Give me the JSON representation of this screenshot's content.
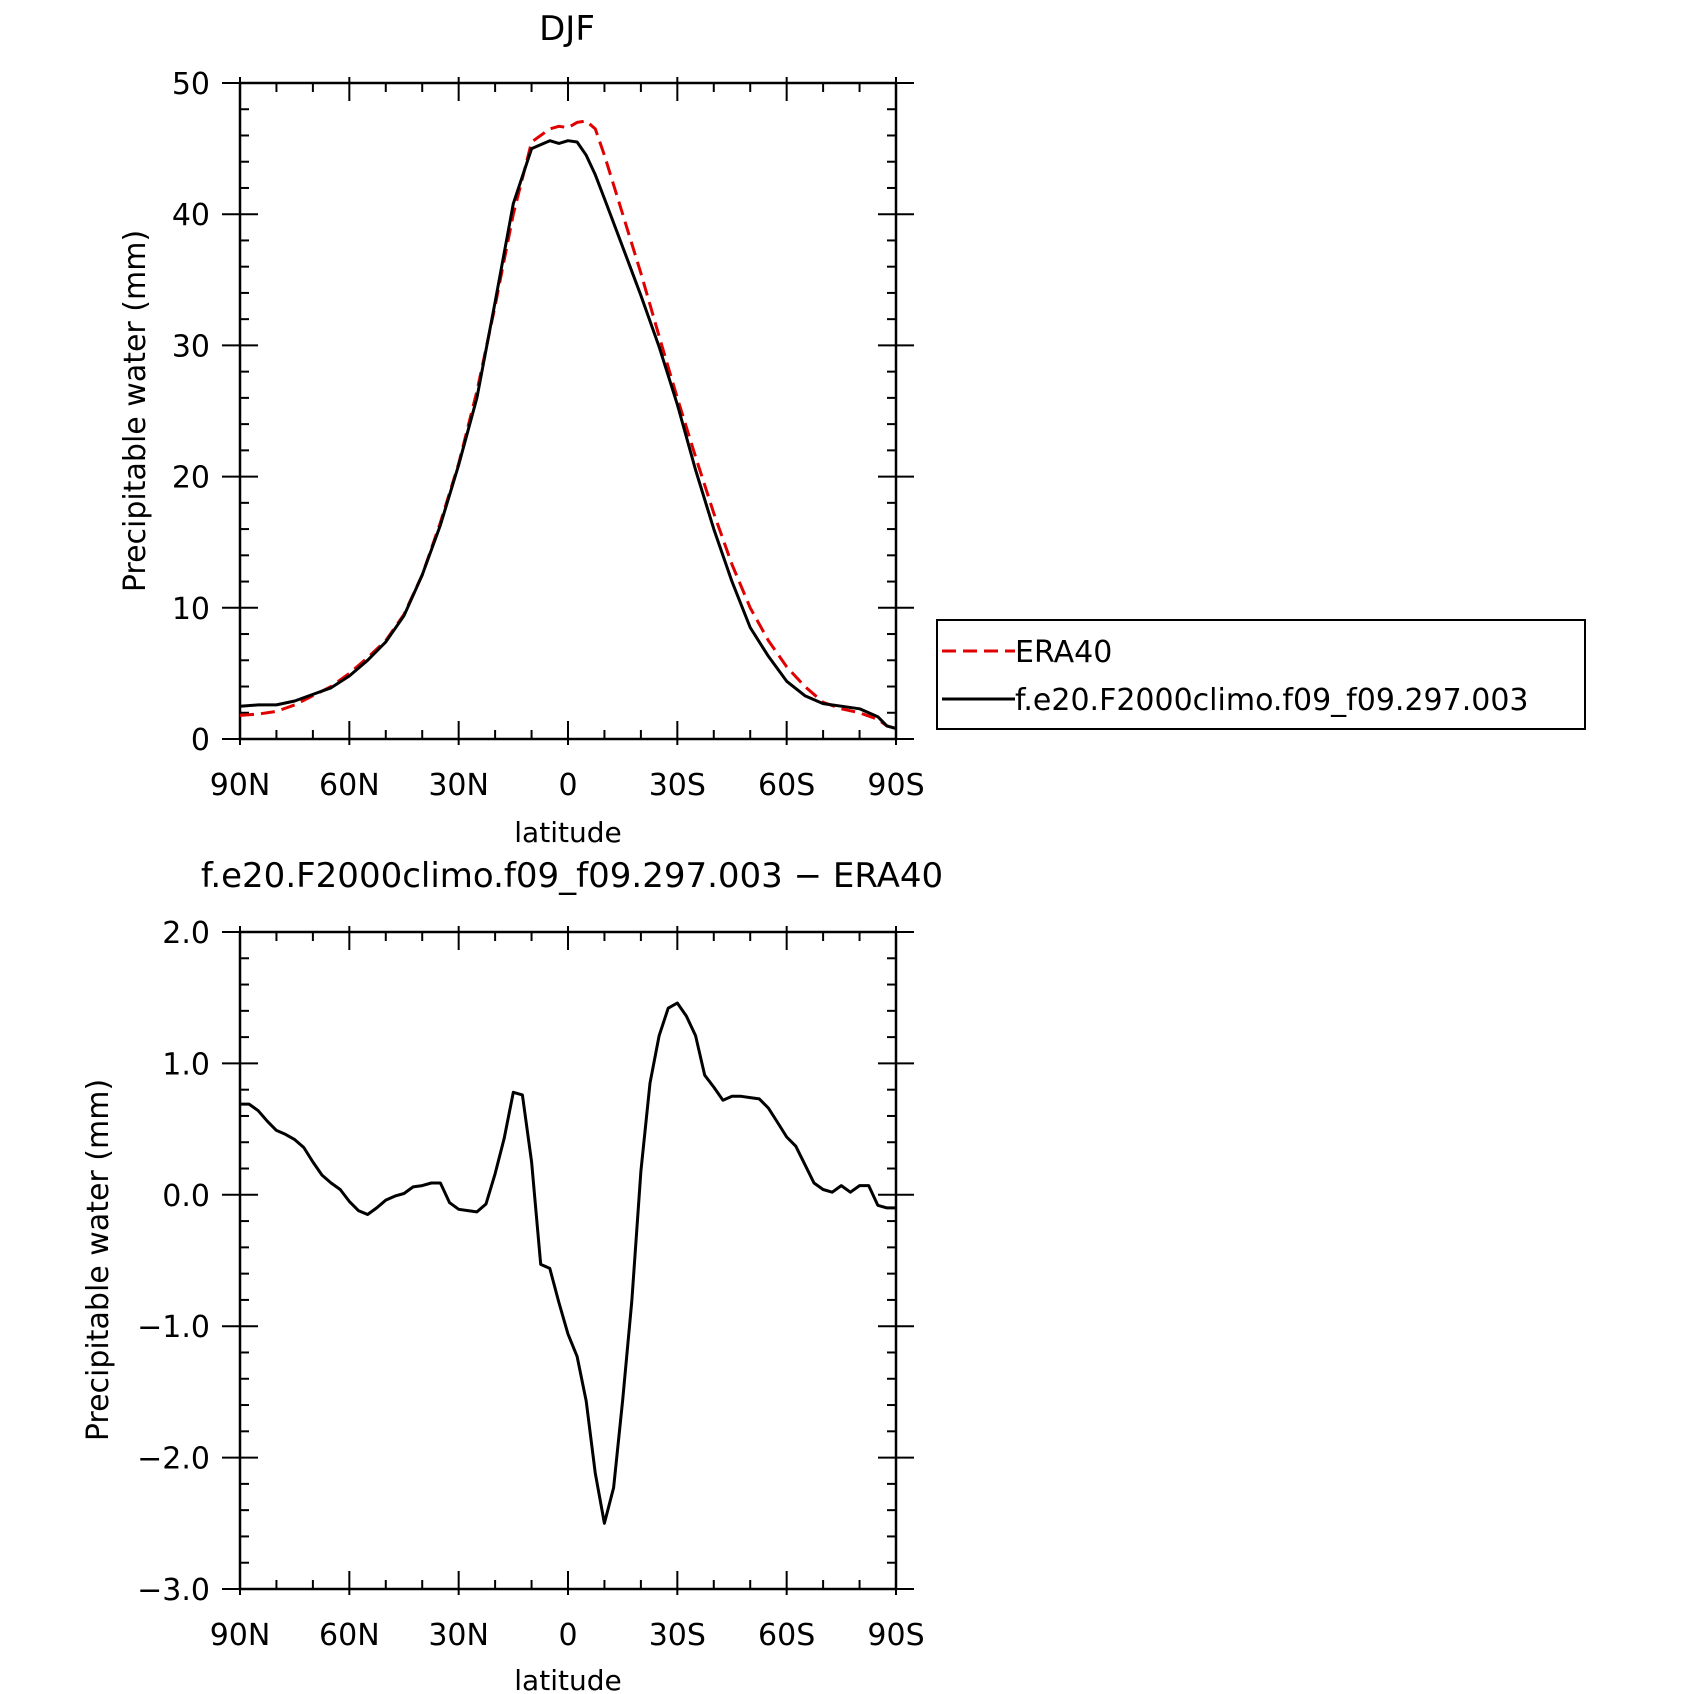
{
  "chart_data": [
    {
      "type": "line",
      "title": "DJF",
      "xlabel": "latitude",
      "ylabel": "Precipitable water (mm)",
      "xlim": [
        90,
        -90
      ],
      "ylim": [
        0,
        50
      ],
      "xticks": [
        {
          "value": 90,
          "label": "90N"
        },
        {
          "value": 60,
          "label": "60N"
        },
        {
          "value": 30,
          "label": "30N"
        },
        {
          "value": 0,
          "label": "0"
        },
        {
          "value": -30,
          "label": "30S"
        },
        {
          "value": -60,
          "label": "60S"
        },
        {
          "value": -90,
          "label": "90S"
        }
      ],
      "yticks": [
        {
          "value": 0,
          "label": "0"
        },
        {
          "value": 10,
          "label": "10"
        },
        {
          "value": 20,
          "label": "20"
        },
        {
          "value": 30,
          "label": "30"
        },
        {
          "value": 40,
          "label": "40"
        },
        {
          "value": 50,
          "label": "50"
        }
      ],
      "legend_position": "right",
      "series": [
        {
          "name": "ERA40",
          "color": "#e00000",
          "dash": true,
          "x": [
            90,
            85,
            80,
            75,
            70,
            65,
            60,
            55,
            50,
            45,
            40,
            35,
            30,
            25,
            20,
            15,
            10,
            5,
            2.5,
            0,
            -2.5,
            -5,
            -7.5,
            -10,
            -15,
            -20,
            -25,
            -30,
            -35,
            -40,
            -45,
            -50,
            -55,
            -60,
            -65,
            -70,
            -75,
            -80,
            -85,
            -87.5,
            -90
          ],
          "y": [
            1.8,
            1.9,
            2.1,
            2.6,
            3.3,
            4.0,
            5.0,
            6.2,
            7.5,
            9.5,
            12.5,
            16.5,
            21.0,
            26.5,
            33.0,
            40.0,
            45.5,
            46.5,
            46.7,
            46.6,
            47.0,
            47.1,
            46.5,
            44.5,
            40.0,
            35.5,
            30.7,
            26.0,
            21.5,
            17.2,
            13.3,
            10.0,
            7.5,
            5.5,
            4.0,
            2.8,
            2.3,
            2.0,
            1.5,
            1.0,
            0.8
          ]
        },
        {
          "name": "f.e20.F2000climo.f09_f09.297.003",
          "color": "#000000",
          "dash": false,
          "x": [
            90,
            85,
            80,
            75,
            70,
            65,
            60,
            55,
            50,
            45,
            40,
            35,
            30,
            25,
            20,
            15,
            10,
            5,
            2.5,
            0,
            -2.5,
            -5,
            -7.5,
            -10,
            -15,
            -20,
            -25,
            -30,
            -35,
            -40,
            -45,
            -50,
            -55,
            -60,
            -65,
            -70,
            -75,
            -80,
            -85,
            -87.5,
            -90
          ],
          "y": [
            2.5,
            2.6,
            2.6,
            2.9,
            3.4,
            3.9,
            4.8,
            6.0,
            7.4,
            9.4,
            12.5,
            16.3,
            20.9,
            26.0,
            33.3,
            40.8,
            45.0,
            45.6,
            45.4,
            45.6,
            45.5,
            44.5,
            43.0,
            41.2,
            37.5,
            33.8,
            29.9,
            25.5,
            20.5,
            16.0,
            12.0,
            8.5,
            6.3,
            4.4,
            3.3,
            2.7,
            2.5,
            2.3,
            1.7,
            1.0,
            0.8
          ]
        }
      ]
    },
    {
      "type": "line",
      "title": "f.e20.F2000climo.f09_f09.297.003 − ERA40",
      "xlabel": "latitude",
      "ylabel": "Precipitable water (mm)",
      "xlim": [
        90,
        -90
      ],
      "ylim": [
        -3.0,
        2.0
      ],
      "xticks": [
        {
          "value": 90,
          "label": "90N"
        },
        {
          "value": 60,
          "label": "60N"
        },
        {
          "value": 30,
          "label": "30N"
        },
        {
          "value": 0,
          "label": "0"
        },
        {
          "value": -30,
          "label": "30S"
        },
        {
          "value": -60,
          "label": "60S"
        },
        {
          "value": -90,
          "label": "90S"
        }
      ],
      "yticks": [
        {
          "value": -3.0,
          "label": "−3.0"
        },
        {
          "value": -2.0,
          "label": "−2.0"
        },
        {
          "value": -1.0,
          "label": "−1.0"
        },
        {
          "value": 0.0,
          "label": "0.0"
        },
        {
          "value": 1.0,
          "label": "1.0"
        },
        {
          "value": 2.0,
          "label": "2.0"
        }
      ],
      "series": [
        {
          "color": "#000000",
          "dash": false,
          "x": [
            90,
            87.5,
            85,
            82.5,
            80,
            77.5,
            75,
            72.5,
            70,
            67.5,
            65,
            62.5,
            60,
            57.5,
            55,
            52.5,
            50,
            47.5,
            45,
            42.5,
            40,
            37.5,
            35,
            32.5,
            30,
            27.5,
            25,
            22.5,
            20,
            17.5,
            15,
            12.5,
            10,
            7.5,
            5,
            2.5,
            0,
            -2.5,
            -5,
            -7.5,
            -10,
            -12.5,
            -15,
            -17.5,
            -20,
            -22.5,
            -25,
            -27.5,
            -30,
            -32.5,
            -35,
            -37.5,
            -40,
            -42.5,
            -45,
            -47.5,
            -50,
            -52.5,
            -55,
            -57.5,
            -60,
            -62.5,
            -65,
            -67.5,
            -70,
            -72.5,
            -75,
            -77.5,
            -80,
            -82.5,
            -85,
            -87.5,
            -90
          ],
          "y": [
            0.69,
            0.69,
            0.64,
            0.56,
            0.49,
            0.46,
            0.42,
            0.36,
            0.25,
            0.15,
            0.09,
            0.04,
            -0.05,
            -0.12,
            -0.15,
            -0.1,
            -0.04,
            -0.01,
            0.01,
            0.06,
            0.07,
            0.09,
            0.09,
            -0.06,
            -0.11,
            -0.12,
            -0.13,
            -0.07,
            0.16,
            0.43,
            0.78,
            0.76,
            0.25,
            -0.53,
            -0.56,
            -0.82,
            -1.06,
            -1.23,
            -1.57,
            -2.12,
            -2.5,
            -2.23,
            -1.56,
            -0.81,
            0.18,
            0.85,
            1.21,
            1.42,
            1.46,
            1.36,
            1.21,
            0.91,
            0.82,
            0.72,
            0.75,
            0.75,
            0.74,
            0.73,
            0.66,
            0.55,
            0.44,
            0.37,
            0.23,
            0.09,
            0.04,
            0.02,
            0.07,
            0.02,
            0.07,
            0.07,
            -0.08,
            -0.1,
            -0.1
          ]
        }
      ]
    }
  ]
}
